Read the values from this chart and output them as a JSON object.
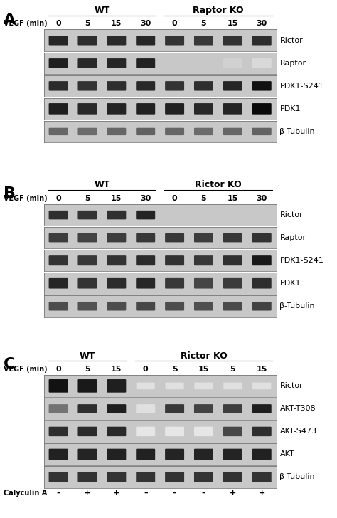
{
  "panel_A": {
    "label": "A",
    "group1_label": "WT",
    "group2_label": "Raptor KO",
    "vegf_label": "VEGF (min)",
    "vegf_times": [
      "0",
      "5",
      "15",
      "30",
      "0",
      "5",
      "15",
      "30"
    ],
    "blots": [
      "Rictor",
      "Raptor",
      "PDK1-S241",
      "PDK1",
      "β-Tubulin"
    ],
    "bands": {
      "Rictor": [
        0.85,
        0.82,
        0.83,
        0.85,
        0.8,
        0.78,
        0.8,
        0.82
      ],
      "Raptor": [
        0.88,
        0.84,
        0.85,
        0.87,
        0.0,
        0.0,
        0.18,
        0.15
      ],
      "PDK1-S241": [
        0.83,
        0.8,
        0.82,
        0.84,
        0.8,
        0.82,
        0.85,
        0.93
      ],
      "PDK1": [
        0.88,
        0.84,
        0.86,
        0.87,
        0.87,
        0.84,
        0.86,
        0.96
      ],
      "β-Tubulin": [
        0.6,
        0.58,
        0.6,
        0.62,
        0.6,
        0.58,
        0.6,
        0.61
      ]
    },
    "band_heights": {
      "Rictor": 0.38,
      "Raptor": 0.38,
      "PDK1-S241": 0.38,
      "PDK1": 0.45,
      "β-Tubulin": 0.28
    }
  },
  "panel_B": {
    "label": "B",
    "group1_label": "WT",
    "group2_label": "Rictor KO",
    "vegf_label": "VEGF (min)",
    "vegf_times": [
      "0",
      "5",
      "15",
      "30",
      "0",
      "5",
      "15",
      "30"
    ],
    "blots": [
      "Rictor",
      "Raptor",
      "PDK1-S241",
      "PDK1",
      "β-Tubulin"
    ],
    "bands": {
      "Rictor": [
        0.82,
        0.8,
        0.81,
        0.86,
        0.0,
        0.0,
        0.0,
        0.0
      ],
      "Raptor": [
        0.76,
        0.74,
        0.76,
        0.78,
        0.78,
        0.76,
        0.78,
        0.8
      ],
      "PDK1-S241": [
        0.8,
        0.78,
        0.8,
        0.83,
        0.8,
        0.78,
        0.81,
        0.9
      ],
      "PDK1": [
        0.85,
        0.8,
        0.83,
        0.85,
        0.78,
        0.73,
        0.77,
        0.82
      ],
      "β-Tubulin": [
        0.7,
        0.68,
        0.7,
        0.72,
        0.7,
        0.69,
        0.71,
        0.74
      ]
    },
    "band_heights": {
      "Rictor": 0.35,
      "Raptor": 0.35,
      "PDK1-S241": 0.4,
      "PDK1": 0.42,
      "β-Tubulin": 0.35
    }
  },
  "panel_C": {
    "label": "C",
    "group1_label": "WT",
    "group2_label": "Rictor KO",
    "vegf_label": "VEGF (min)",
    "vegf_times": [
      "0",
      "5",
      "15",
      "0",
      "5",
      "15",
      "5",
      "15"
    ],
    "calyculin_label": "Calyculin A",
    "calyculin_signs": [
      "–",
      "+",
      "+",
      "–",
      "–",
      "–",
      "+",
      "+"
    ],
    "blots": [
      "Rictor",
      "AKT-T308",
      "AKT-S473",
      "AKT",
      "β-Tubulin"
    ],
    "bands": {
      "Rictor": [
        0.93,
        0.9,
        0.88,
        0.04,
        0.04,
        0.04,
        0.04,
        0.04
      ],
      "AKT-T308": [
        0.55,
        0.82,
        0.88,
        0.12,
        0.78,
        0.74,
        0.76,
        0.88
      ],
      "AKT-S473": [
        0.82,
        0.83,
        0.84,
        0.1,
        0.1,
        0.1,
        0.72,
        0.82
      ],
      "AKT": [
        0.87,
        0.86,
        0.87,
        0.87,
        0.86,
        0.86,
        0.86,
        0.87
      ],
      "β-Tubulin": [
        0.8,
        0.8,
        0.8,
        0.8,
        0.8,
        0.8,
        0.8,
        0.8
      ]
    },
    "band_heights": {
      "Rictor": 0.55,
      "AKT-T308": 0.35,
      "AKT-S473": 0.38,
      "AKT": 0.45,
      "β-Tubulin": 0.42
    }
  },
  "blot_bg": "#c8c8c8",
  "fig_bg": "#ffffff",
  "label_fontsize": 8,
  "title_fontsize": 9,
  "panel_label_fontsize": 16
}
